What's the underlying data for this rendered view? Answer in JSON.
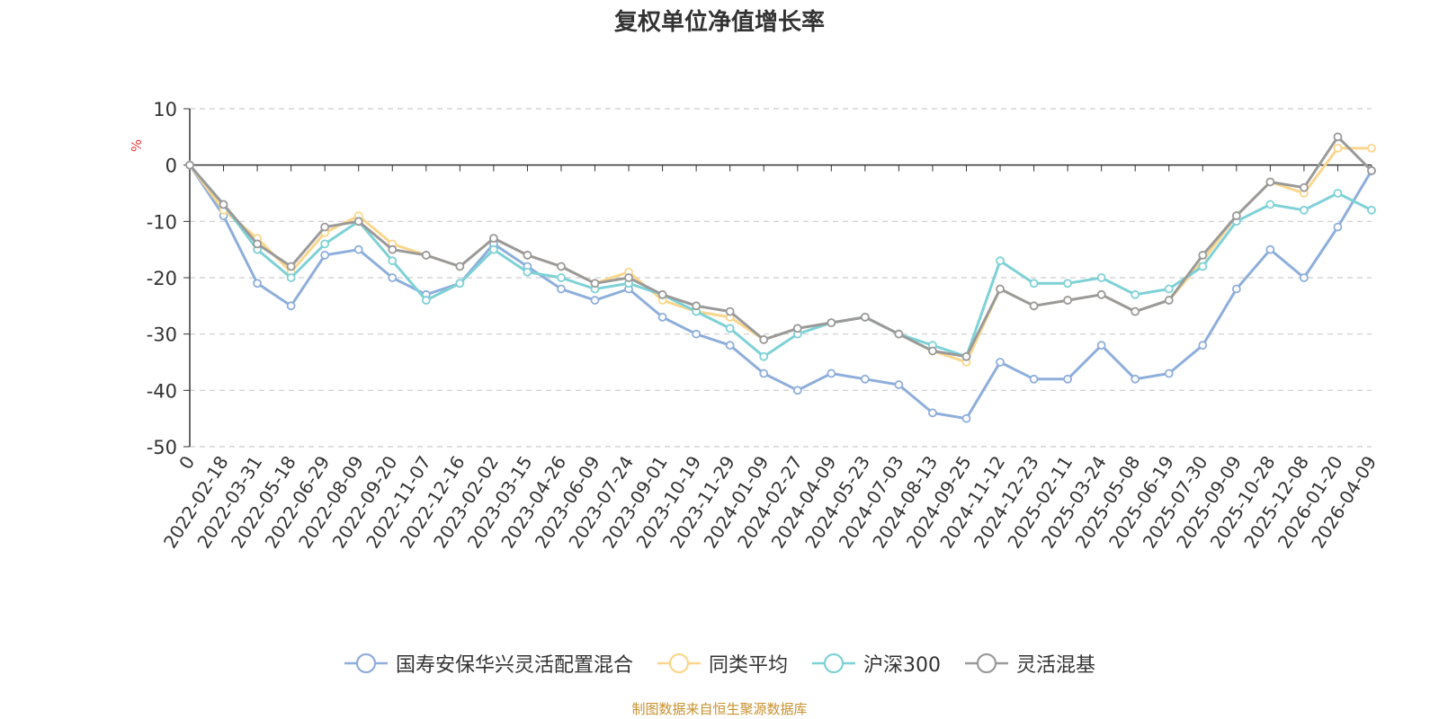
{
  "chart_data": {
    "type": "line",
    "title": "复权单位净值增长率",
    "ylabel": "%",
    "ylim": [
      -50,
      10
    ],
    "yticks": [
      10,
      0,
      -10,
      -20,
      -30,
      -40,
      -50
    ],
    "categories": [
      "0",
      "2022-02-18",
      "2022-03-31",
      "2022-05-18",
      "2022-06-29",
      "2022-08-09",
      "2022-09-20",
      "2022-11-07",
      "2022-12-16",
      "2023-02-02",
      "2023-03-15",
      "2023-04-26",
      "2023-06-09",
      "2023-07-24",
      "2023-09-01",
      "2023-10-19",
      "2023-11-29",
      "2024-01-09",
      "2024-02-27",
      "2024-04-09",
      "2024-05-23",
      "2024-07-03",
      "2024-08-13",
      "2024-09-25",
      "2024-11-12",
      "2024-12-23",
      "2025-02-11",
      "2025-03-24",
      "2025-05-08",
      "2025-06-19",
      "2025-07-30",
      "2025-09-09",
      "2025-10-28",
      "2025-12-08",
      "2026-01-20",
      "2026-04-09"
    ],
    "series": [
      {
        "name": "国寿安保华兴灵活配置混合",
        "color": "#8eaedb",
        "values": [
          0,
          -9,
          -21,
          -25,
          -16,
          -15,
          -20,
          -23,
          -21,
          -14,
          -18,
          -22,
          -24,
          -22,
          -27,
          -30,
          -32,
          -37,
          -40,
          -37,
          -38,
          -39,
          -44,
          -45,
          -35,
          -38,
          -38,
          -32,
          -38,
          -37,
          -32,
          -22,
          -15,
          -20,
          -11,
          -1
        ]
      },
      {
        "name": "同类平均",
        "color": "#fad68c",
        "values": [
          0,
          -8,
          -13,
          -19,
          -12,
          -9,
          -14,
          -16,
          -18,
          -13,
          -16,
          -18,
          -21,
          -19,
          -24,
          -26,
          -27,
          -31,
          -29,
          -28,
          -27,
          -30,
          -33,
          -35,
          -22,
          -25,
          -24,
          -23,
          -26,
          -24,
          -17,
          -9,
          -3,
          -5,
          3,
          3
        ]
      },
      {
        "name": "沪深300",
        "color": "#7ed1d6",
        "values": [
          0,
          -7,
          -15,
          -20,
          -14,
          -10,
          -17,
          -24,
          -21,
          -15,
          -19,
          -20,
          -22,
          -21,
          -23,
          -26,
          -29,
          -34,
          -30,
          -28,
          -27,
          -30,
          -32,
          -34,
          -17,
          -21,
          -21,
          -20,
          -23,
          -22,
          -18,
          -10,
          -7,
          -8,
          -5,
          -8
        ]
      },
      {
        "name": "灵活混基",
        "color": "#9a9a9a",
        "values": [
          0,
          -7,
          -14,
          -18,
          -11,
          -10,
          -15,
          -16,
          -18,
          -13,
          -16,
          -18,
          -21,
          -20,
          -23,
          -25,
          -26,
          -31,
          -29,
          -28,
          -27,
          -30,
          -33,
          -34,
          -22,
          -25,
          -24,
          -23,
          -26,
          -24,
          -16,
          -9,
          -3,
          -4,
          5,
          -1
        ]
      }
    ],
    "legend_position": "bottom",
    "grid": "horizontal-dashed"
  },
  "source_note": "制图数据来自恒生聚源数据库"
}
